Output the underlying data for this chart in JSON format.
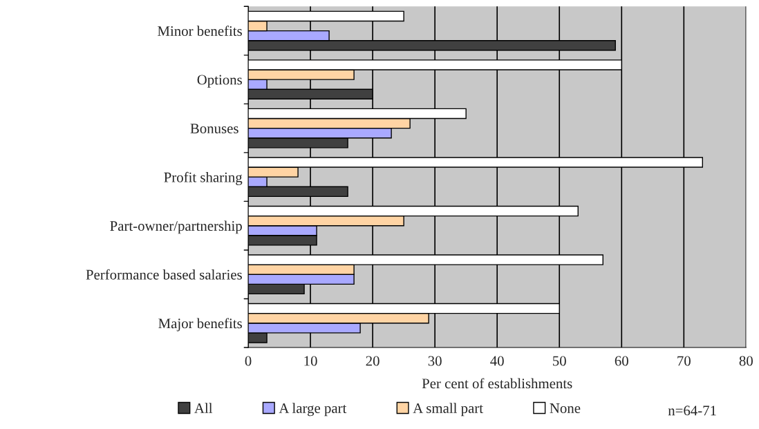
{
  "chart_data": {
    "type": "bar",
    "orientation": "horizontal",
    "xlabel": "Per cent of establishments",
    "categories": [
      "Minor benefits",
      "Options",
      "Bonuses ",
      "Profit sharing",
      "Part-owner/partnership",
      "Performance based salaries",
      "Major benefits"
    ],
    "series": [
      {
        "name": "All",
        "color": "#404040",
        "values": [
          59,
          20,
          16,
          16,
          11,
          9,
          3
        ]
      },
      {
        "name": "A large part",
        "color": "#a9a9ff",
        "values": [
          13,
          3,
          23,
          3,
          11,
          17,
          18
        ]
      },
      {
        "name": "A small part",
        "color": "#ffd4a4",
        "values": [
          3,
          17,
          26,
          8,
          25,
          17,
          29
        ]
      },
      {
        "name": "None",
        "color": "#ffffff",
        "values": [
          25,
          60,
          35,
          73,
          53,
          57,
          50
        ]
      }
    ],
    "xlim": [
      0,
      80
    ],
    "xticks": [
      0,
      10,
      20,
      30,
      40,
      50,
      60,
      70,
      80
    ],
    "grid": "x",
    "legend": "bottom",
    "annotations": [
      "n=64-71"
    ]
  }
}
